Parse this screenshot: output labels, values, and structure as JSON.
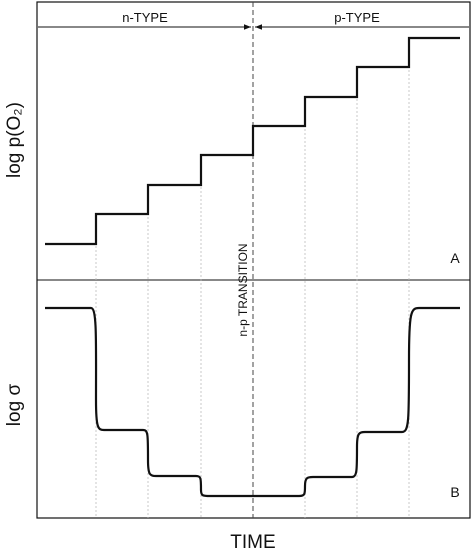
{
  "header": {
    "n_type": "n-TYPE",
    "p_type": "p-TYPE",
    "transition": "n-p TRANSITION"
  },
  "panels": [
    {
      "axis_label": "log p(O₂)",
      "tag": "A"
    },
    {
      "axis_label": "log σ",
      "tag": "B"
    }
  ],
  "x_axis_label": "TIME"
}
